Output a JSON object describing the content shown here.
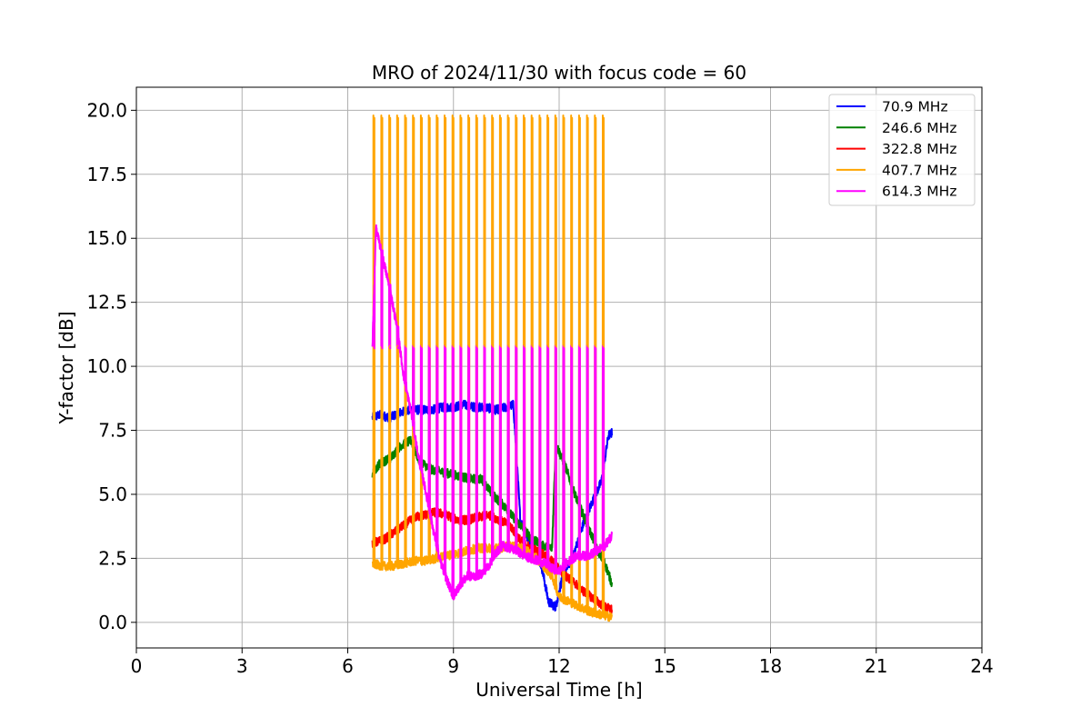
{
  "chart_data": {
    "type": "line",
    "title": "MRO of 2024/11/30 with focus code = 60",
    "xlabel": "Universal Time [h]",
    "ylabel": "Y-factor [dB]",
    "xlim": [
      0,
      24
    ],
    "ylim": [
      -1.0,
      20.9
    ],
    "xticks": [
      0,
      3,
      6,
      9,
      12,
      15,
      18,
      21,
      24
    ],
    "xtick_labels": [
      "0",
      "3",
      "6",
      "9",
      "12",
      "15",
      "18",
      "21",
      "24"
    ],
    "yticks": [
      0.0,
      2.5,
      5.0,
      7.5,
      10.0,
      12.5,
      15.0,
      17.5,
      20.0
    ],
    "ytick_labels": [
      "0.0",
      "2.5",
      "5.0",
      "7.5",
      "10.0",
      "12.5",
      "15.0",
      "17.5",
      "20.0"
    ],
    "grid": true,
    "legend_position": "top-right",
    "pulse_start_x": 6.72,
    "pulse_period_h": 0.2245,
    "pulse_count": 30,
    "series": [
      {
        "name": " 70.9 MHz",
        "color": "#0000ff",
        "x": [
          6.7,
          6.9,
          7.2,
          7.5,
          7.8,
          8.1,
          8.4,
          8.7,
          9.0,
          9.3,
          9.6,
          9.9,
          10.2,
          10.5,
          10.7,
          10.9,
          11.1,
          11.3,
          11.5,
          11.7,
          11.9,
          12.1,
          12.4,
          12.7,
          13.0,
          13.2,
          13.4,
          13.5
        ],
        "y": [
          8.0,
          8.1,
          8.0,
          8.2,
          8.3,
          8.3,
          8.3,
          8.4,
          8.4,
          8.5,
          8.4,
          8.4,
          8.3,
          8.4,
          8.5,
          4.0,
          3.3,
          2.9,
          2.2,
          0.8,
          0.6,
          1.8,
          2.6,
          3.9,
          4.9,
          5.5,
          7.3,
          7.4
        ]
      },
      {
        "name": "246.6 MHz",
        "color": "#008000",
        "x": [
          6.7,
          6.9,
          7.2,
          7.5,
          7.8,
          8.0,
          8.3,
          8.6,
          8.9,
          9.2,
          9.5,
          9.8,
          10.1,
          10.4,
          10.7,
          10.9,
          11.2,
          11.5,
          11.8,
          11.9,
          12.2,
          12.5,
          12.8,
          13.1,
          13.3,
          13.5
        ],
        "y": [
          5.8,
          6.2,
          6.4,
          6.9,
          7.1,
          6.4,
          6.0,
          5.9,
          5.8,
          5.7,
          5.6,
          5.6,
          5.0,
          4.6,
          4.1,
          3.8,
          3.3,
          3.0,
          2.9,
          7.0,
          6.0,
          4.8,
          3.8,
          2.8,
          2.3,
          1.5
        ]
      },
      {
        "name": "322.8 MHz",
        "color": "#ff0000",
        "x": [
          6.7,
          7.0,
          7.3,
          7.6,
          7.9,
          8.2,
          8.5,
          8.8,
          9.1,
          9.4,
          9.7,
          10.0,
          10.3,
          10.6,
          10.9,
          11.2,
          11.5,
          11.8,
          12.1,
          12.4,
          12.7,
          13.0,
          13.3,
          13.5
        ],
        "y": [
          3.1,
          3.2,
          3.5,
          3.8,
          4.1,
          4.2,
          4.3,
          4.2,
          4.0,
          4.0,
          4.1,
          4.2,
          4.0,
          3.8,
          3.2,
          2.9,
          2.7,
          2.4,
          1.9,
          1.6,
          1.2,
          0.9,
          0.6,
          0.5
        ]
      },
      {
        "name": "407.7 MHz",
        "color": "#ffa500",
        "x": [
          6.7,
          7.0,
          7.3,
          7.6,
          7.9,
          8.2,
          8.5,
          8.8,
          9.1,
          9.4,
          9.7,
          10.0,
          10.3,
          10.6,
          10.9,
          11.2,
          11.5,
          11.8,
          12.0,
          12.3,
          12.6,
          12.9,
          13.2,
          13.5
        ],
        "y": [
          2.3,
          2.2,
          2.2,
          2.3,
          2.4,
          2.4,
          2.5,
          2.6,
          2.7,
          2.8,
          2.9,
          2.9,
          2.9,
          3.0,
          2.9,
          2.7,
          2.3,
          1.8,
          1.0,
          0.8,
          0.6,
          0.4,
          0.3,
          0.2
        ],
        "pulse_peak": 19.8,
        "pulse_peak_late": 10.8
      },
      {
        "name": "614.3 MHz",
        "color": "#ff00ff",
        "x": [
          6.7,
          6.8,
          7.0,
          7.2,
          7.4,
          7.6,
          7.8,
          8.0,
          8.2,
          8.4,
          8.6,
          8.8,
          9.0,
          9.2,
          9.4,
          9.6,
          9.8,
          10.0,
          10.2,
          10.4,
          10.6,
          10.8,
          11.0,
          11.2,
          11.4,
          11.6,
          11.8,
          12.0,
          12.2,
          12.5,
          12.8,
          13.1,
          13.3,
          13.5
        ],
        "y": [
          10.8,
          15.4,
          14.2,
          13.0,
          11.5,
          9.5,
          8.2,
          6.5,
          5.2,
          3.8,
          2.5,
          1.7,
          1.0,
          1.5,
          1.8,
          1.8,
          1.9,
          2.2,
          2.7,
          3.0,
          2.9,
          2.8,
          2.6,
          2.5,
          2.4,
          2.3,
          2.1,
          2.0,
          2.3,
          2.6,
          2.6,
          2.8,
          3.0,
          3.4
        ],
        "pulse_peak": 10.8
      }
    ]
  }
}
